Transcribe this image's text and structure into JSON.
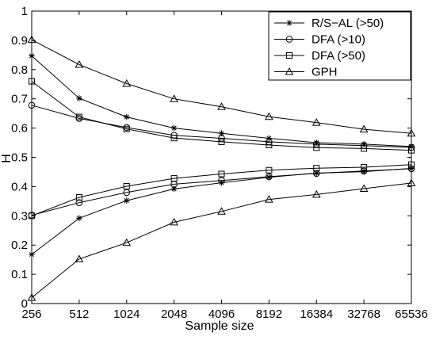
{
  "chart_data": {
    "type": "line",
    "xlabel": "Sample size",
    "ylabel": "H",
    "x_scale": "log2",
    "categories": [
      "256",
      "512",
      "1024",
      "2048",
      "4096",
      "8192",
      "16384",
      "32768",
      "65536"
    ],
    "ylim": [
      0,
      1
    ],
    "y_ticks": [
      "0",
      "0.1",
      "0.2",
      "0.3",
      "0.4",
      "0.5",
      "0.6",
      "0.7",
      "0.8",
      "0.9",
      "1"
    ],
    "grid": false,
    "legend_position": "top-right",
    "series": [
      {
        "name": "R/S−AL (>50)",
        "marker": "star",
        "band": "upper",
        "values": [
          0.847,
          0.702,
          0.638,
          0.6,
          0.582,
          0.565,
          0.55,
          0.545,
          0.537
        ]
      },
      {
        "name": "R/S−AL (>50)",
        "marker": "star",
        "band": "lower",
        "values": [
          0.168,
          0.292,
          0.352,
          0.392,
          0.413,
          0.432,
          0.446,
          0.451,
          0.462
        ]
      },
      {
        "name": "DFA (>10)",
        "marker": "circle",
        "band": "upper",
        "values": [
          0.678,
          0.633,
          0.602,
          0.575,
          0.565,
          0.553,
          0.545,
          0.54,
          0.534
        ]
      },
      {
        "name": "DFA (>10)",
        "marker": "circle",
        "band": "lower",
        "values": [
          0.302,
          0.345,
          0.38,
          0.408,
          0.421,
          0.434,
          0.445,
          0.453,
          0.461
        ]
      },
      {
        "name": "DFA (>50)",
        "marker": "square",
        "band": "upper",
        "values": [
          0.76,
          0.638,
          0.597,
          0.566,
          0.553,
          0.542,
          0.533,
          0.53,
          0.524
        ]
      },
      {
        "name": "DFA (>50)",
        "marker": "square",
        "band": "lower",
        "values": [
          0.3,
          0.363,
          0.401,
          0.428,
          0.443,
          0.456,
          0.463,
          0.466,
          0.475
        ]
      },
      {
        "name": "GPH",
        "marker": "triangle",
        "band": "upper",
        "values": [
          0.902,
          0.817,
          0.752,
          0.7,
          0.673,
          0.639,
          0.619,
          0.596,
          0.582
        ]
      },
      {
        "name": "GPH",
        "marker": "triangle",
        "band": "lower",
        "values": [
          0.02,
          0.152,
          0.208,
          0.278,
          0.315,
          0.356,
          0.373,
          0.393,
          0.412
        ]
      }
    ],
    "legend": [
      {
        "label": "R/S−AL (>50)",
        "marker": "star"
      },
      {
        "label": "DFA (>10)",
        "marker": "circle"
      },
      {
        "label": "DFA (>50)",
        "marker": "square"
      },
      {
        "label": "GPH",
        "marker": "triangle"
      }
    ]
  }
}
